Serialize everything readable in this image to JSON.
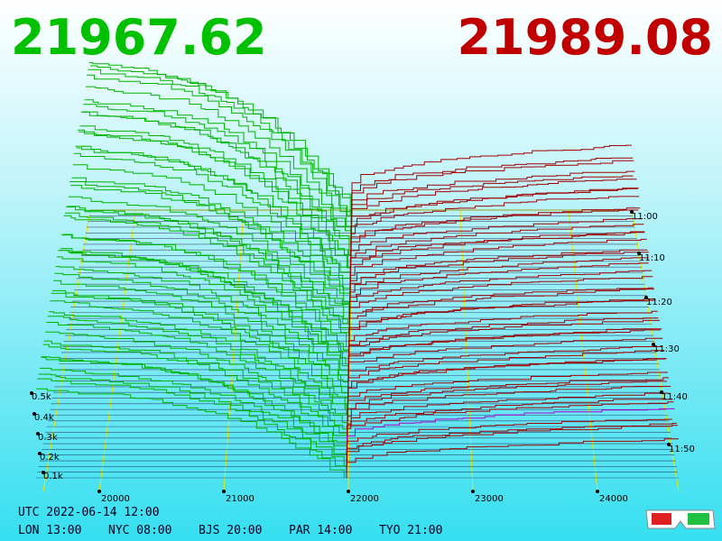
{
  "prices": {
    "bid": "21967.62",
    "ask": "21989.08"
  },
  "price_axis": [
    "20000",
    "21000",
    "22000",
    "23000",
    "24000"
  ],
  "volume_axis": [
    "0.5k",
    "0.4k",
    "0.3k",
    "0.2k",
    "0.1k"
  ],
  "time_axis": [
    "11:00",
    "11:10",
    "11:20",
    "11:30",
    "11:40",
    "11:50"
  ],
  "footer": {
    "utc": "UTC 2022-06-14 12:00",
    "clocks": [
      "LON 13:00",
      "NYC 08:00",
      "BJS 20:00",
      "PAR 14:00",
      "TYO 21:00"
    ]
  }
}
